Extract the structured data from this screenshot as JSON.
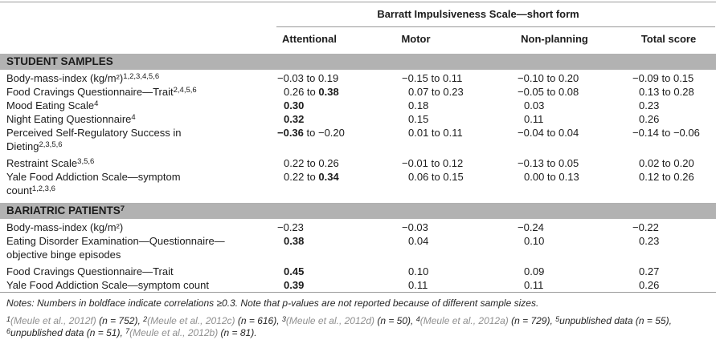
{
  "table": {
    "spanner": "Barratt Impulsiveness Scale—short form",
    "columns": [
      "Attentional",
      "Motor",
      "Non-planning",
      "Total score"
    ],
    "sections": [
      {
        "header": "STUDENT SAMPLES",
        "header_sup": "",
        "rows": [
          {
            "label": "Body-mass-index (kg/m²)",
            "sup": "1,2,3,4,5,6",
            "values": [
              [
                [
                  "−0.03 to 0.19",
                  0
                ]
              ],
              [
                [
                  "−0.15 to 0.11",
                  0
                ]
              ],
              [
                [
                  "−0.10 to 0.20",
                  0
                ]
              ],
              [
                [
                  "−0.09 to 0.15",
                  0
                ]
              ]
            ]
          },
          {
            "label": "Food Cravings Questionnaire—Trait",
            "sup": "2,4,5,6",
            "values": [
              [
                [
                  "0.26 to ",
                  0
                ],
                [
                  "0.38",
                  1
                ]
              ],
              [
                [
                  "0.07 to 0.23",
                  0
                ]
              ],
              [
                [
                  "−0.05 to 0.08",
                  0
                ]
              ],
              [
                [
                  "0.13 to 0.28",
                  0
                ]
              ]
            ]
          },
          {
            "label": "Mood Eating Scale",
            "sup": "4",
            "values": [
              [
                [
                  "0.30",
                  1
                ]
              ],
              [
                [
                  "0.18",
                  0
                ]
              ],
              [
                [
                  "0.03",
                  0
                ]
              ],
              [
                [
                  "0.23",
                  0
                ]
              ]
            ]
          },
          {
            "label": "Night Eating Questionnaire",
            "sup": "4",
            "values": [
              [
                [
                  "0.32",
                  1
                ]
              ],
              [
                [
                  "0.15",
                  0
                ]
              ],
              [
                [
                  "0.11",
                  0
                ]
              ],
              [
                [
                  "0.26",
                  0
                ]
              ]
            ]
          },
          {
            "label": "Perceived Self-Regulatory Success in Dieting",
            "sup": "2,3,5,6",
            "values": [
              [
                [
                  "−0.36",
                  1
                ],
                [
                  " to −0.20",
                  0
                ]
              ],
              [
                [
                  "0.01 to 0.11",
                  0
                ]
              ],
              [
                [
                  "−0.04 to 0.04",
                  0
                ]
              ],
              [
                [
                  "−0.14 to −0.06",
                  0
                ]
              ]
            ]
          },
          {
            "label": "Restraint Scale",
            "sup": "3,5,6",
            "values": [
              [
                [
                  "0.22 to 0.26",
                  0
                ]
              ],
              [
                [
                  "−0.01 to 0.12",
                  0
                ]
              ],
              [
                [
                  "−0.13 to 0.05",
                  0
                ]
              ],
              [
                [
                  "0.02 to 0.20",
                  0
                ]
              ]
            ]
          },
          {
            "label": "Yale Food Addiction Scale—symptom count",
            "sup": "1,2,3,6",
            "values": [
              [
                [
                  "0.22 to ",
                  0
                ],
                [
                  "0.34",
                  1
                ]
              ],
              [
                [
                  "0.06 to 0.15",
                  0
                ]
              ],
              [
                [
                  "0.00 to 0.13",
                  0
                ]
              ],
              [
                [
                  "0.12 to 0.26",
                  0
                ]
              ]
            ]
          }
        ]
      },
      {
        "header": "BARIATRIC PATIENTS",
        "header_sup": "7",
        "rows": [
          {
            "label": "Body-mass-index (kg/m²)",
            "sup": "",
            "values": [
              [
                [
                  "−0.23",
                  0
                ]
              ],
              [
                [
                  "−0.03",
                  0
                ]
              ],
              [
                [
                  "−0.24",
                  0
                ]
              ],
              [
                [
                  "−0.22",
                  0
                ]
              ]
            ]
          },
          {
            "label": "Eating Disorder Examination—Questionnaire—objective binge episodes",
            "sup": "",
            "values": [
              [
                [
                  "0.38",
                  1
                ]
              ],
              [
                [
                  "0.04",
                  0
                ]
              ],
              [
                [
                  "0.10",
                  0
                ]
              ],
              [
                [
                  "0.23",
                  0
                ]
              ]
            ]
          },
          {
            "label": "Food Cravings Questionnaire—Trait",
            "sup": "",
            "values": [
              [
                [
                  "0.45",
                  1
                ]
              ],
              [
                [
                  "0.10",
                  0
                ]
              ],
              [
                [
                  "0.09",
                  0
                ]
              ],
              [
                [
                  "0.27",
                  0
                ]
              ]
            ]
          },
          {
            "label": "Yale Food Addiction Scale—symptom count",
            "sup": "",
            "values": [
              [
                [
                  "0.39",
                  1
                ]
              ],
              [
                [
                  "0.11",
                  0
                ]
              ],
              [
                [
                  "0.11",
                  0
                ]
              ],
              [
                [
                  "0.26",
                  0
                ]
              ]
            ]
          }
        ]
      }
    ]
  },
  "notes": {
    "line1": "Notes: Numbers in boldface indicate correlations ≥0.3. Note that p-values are not reported because of different sample sizes.",
    "footnotes": [
      {
        "sup": "1",
        "cite": "(Meule et al., 2012f)",
        "text": " (n = 752), "
      },
      {
        "sup": "2",
        "cite": "(Meule et al., 2012c)",
        "text": " (n = 616), "
      },
      {
        "sup": "3",
        "cite": "(Meule et al., 2012d)",
        "text": " (n = 50), "
      },
      {
        "sup": "4",
        "cite": "(Meule et al., 2012a)",
        "text": " (n = 729), "
      },
      {
        "sup": "5",
        "cite": "",
        "text": "unpublished data (n = 55), "
      },
      {
        "sup": "6",
        "cite": "",
        "text": "unpublished data (n = 51), "
      },
      {
        "sup": "7",
        "cite": "(Meule et al., 2012b)",
        "text": " (n = 81)."
      }
    ]
  },
  "colors": {
    "section_banner_bg": "#b2b2b2",
    "rule_gray": "#9b9b9b",
    "citation_gray": "#8f8f8f",
    "text": "#1c1c1c"
  }
}
